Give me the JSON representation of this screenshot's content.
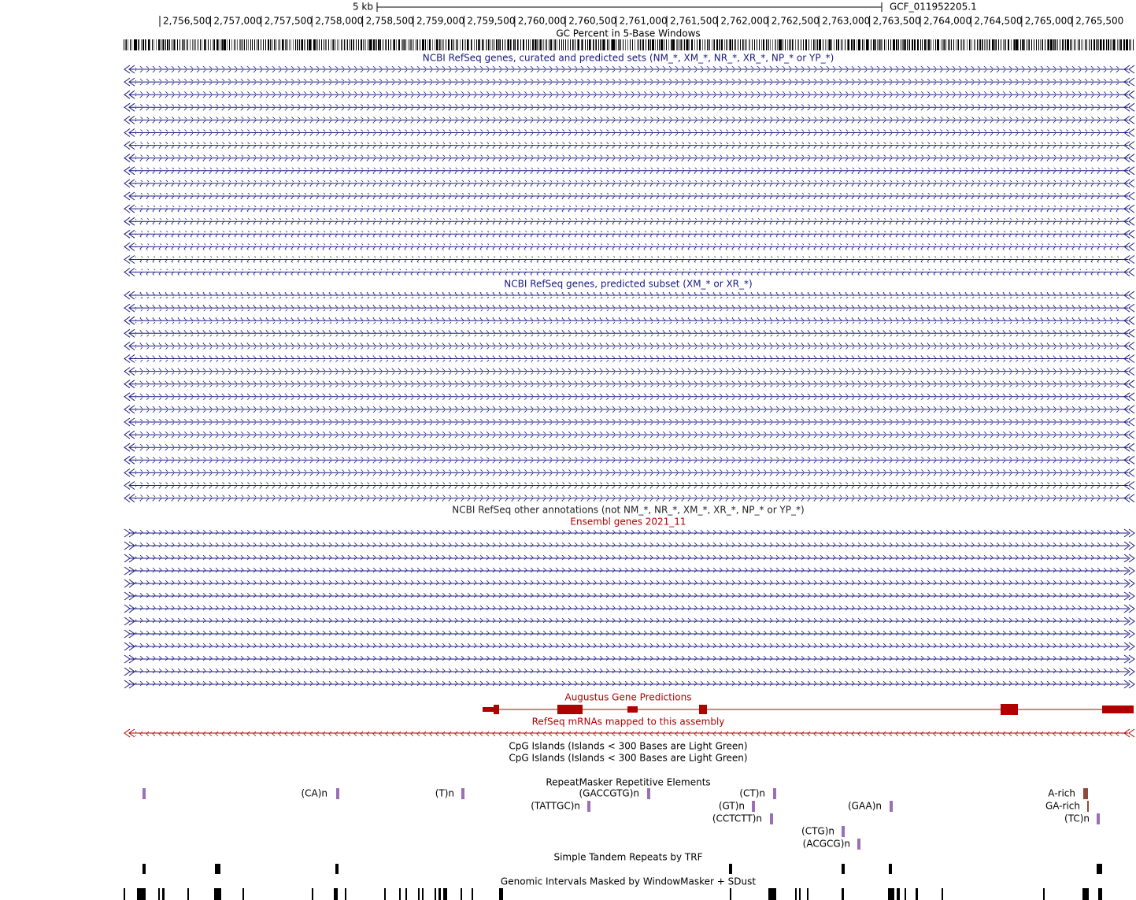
{
  "ruler": {
    "scale": "5 kb",
    "assembly": "GCF_011952205.1",
    "positions": [
      "2,756,500",
      "2,757,000",
      "2,757,500",
      "2,758,000",
      "2,758,500",
      "2,759,000",
      "2,759,500",
      "2,760,000",
      "2,760,500",
      "2,761,000",
      "2,761,500",
      "2,762,000",
      "2,762,500",
      "2,763,000",
      "2,763,500",
      "2,764,000",
      "2,764,500",
      "2,765,000",
      "2,765,500"
    ]
  },
  "tracks": {
    "gc": "GC Percent in 5-Base Windows",
    "refseq_all": "NCBI RefSeq genes, curated and predicted sets (NM_*, XM_*, NR_*, XR_*, NP_* or YP_*)",
    "refseq_predicted": "NCBI RefSeq genes, predicted subset (XM_* or XR_*)",
    "refseq_other": "NCBI RefSeq other annotations (not NM_*, NR_*, XM_*, XR_*, NP_* or YP_*)",
    "ensembl": "Ensembl genes 2021_11",
    "augustus": "Augustus Gene Predictions",
    "refseq_mrna": "RefSeq mRNAs mapped to this assembly",
    "cpg_1": "CpG Islands (Islands < 300 Bases are Light Green)",
    "cpg_2": "CpG Islands (Islands < 300 Bases are Light Green)",
    "repeatmasker": "RepeatMasker Repetitive Elements",
    "trf": "Simple Tandem Repeats by TRF",
    "windowmasker": "Genomic Intervals Masked by WindowMasker + SDust"
  },
  "repeats": [
    "(CA)n",
    "(T)n",
    "(GACCGTG)n",
    "(CT)n",
    "A-rich",
    "(TATTGC)n",
    "(GT)n",
    "(GAA)n",
    "GA-rich",
    "(CCTCTT)n",
    "(TC)n",
    "(CTG)n",
    "(ACGCG)n"
  ]
}
